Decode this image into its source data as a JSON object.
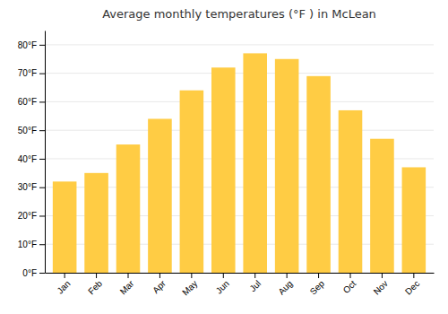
{
  "chart_data": {
    "type": "bar",
    "title": "Average monthly temperatures (°F ) in McLean",
    "categories": [
      "Jan",
      "Feb",
      "Mar",
      "Apr",
      "May",
      "Jun",
      "Jul",
      "Aug",
      "Sep",
      "Oct",
      "Nov",
      "Dec"
    ],
    "values": [
      32,
      35,
      45,
      54,
      64,
      72,
      77,
      75,
      69,
      57,
      47,
      37
    ],
    "color": "#FFCC44",
    "ylim": [
      0,
      85
    ],
    "yticks": [
      {
        "value": 0,
        "label": "0°F"
      },
      {
        "value": 10,
        "label": "10°F"
      },
      {
        "value": 20,
        "label": "20°F"
      },
      {
        "value": 30,
        "label": "30°F"
      },
      {
        "value": 40,
        "label": "40°F"
      },
      {
        "value": 50,
        "label": "50°F"
      },
      {
        "value": 60,
        "label": "60°F"
      },
      {
        "value": 70,
        "label": "70°F"
      },
      {
        "value": 80,
        "label": "80°F"
      }
    ],
    "grid": true
  }
}
